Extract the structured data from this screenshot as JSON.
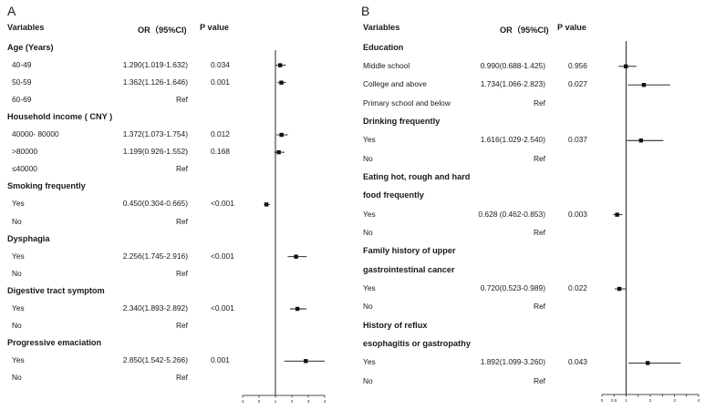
{
  "chart_data": [
    {
      "type": "forest",
      "panel": "A",
      "columns": [
        "Variables",
        "OR（95%CI)",
        "P value"
      ],
      "rows": [
        {
          "label": "Age (Years)",
          "header": true
        },
        {
          "label": "40-49",
          "or": 1.29,
          "lo": 1.019,
          "hi": 1.632,
          "ci": "1.290(1.019-1.632)",
          "p": "0.034"
        },
        {
          "label": "50-59",
          "or": 1.362,
          "lo": 1.126,
          "hi": 1.646,
          "ci": "1.362(1.126-1.646)",
          "p": "0.001"
        },
        {
          "label": "60-69",
          "ci": "Ref",
          "p": ""
        },
        {
          "label": "Household income ( CNY )",
          "header": true
        },
        {
          "label": "40000- 80000",
          "or": 1.372,
          "lo": 1.073,
          "hi": 1.754,
          "ci": "1.372(1.073-1.754)",
          "p": "0.012"
        },
        {
          "label": ">80000",
          "or": 1.199,
          "lo": 0.926,
          "hi": 1.552,
          "ci": "1.199(0.926-1.552)",
          "p": "0.168"
        },
        {
          "label": "≤40000",
          "ci": "Ref",
          "p": ""
        },
        {
          "label": "Smoking frequently",
          "header": true
        },
        {
          "label": "Yes",
          "or": 0.45,
          "lo": 0.304,
          "hi": 0.665,
          "ci": "0.450(0.304-0.665)",
          "p": "<0.001"
        },
        {
          "label": "No",
          "ci": "Ref",
          "p": ""
        },
        {
          "label": "Dysphagia",
          "header": true
        },
        {
          "label": "Yes",
          "or": 2.256,
          "lo": 1.745,
          "hi": 2.916,
          "ci": "2.256(1.745-2.916)",
          "p": "<0.001"
        },
        {
          "label": "No",
          "ci": "Ref",
          "p": ""
        },
        {
          "label": "Digestive tract symptom",
          "header": true
        },
        {
          "label": "Yes",
          "or": 2.34,
          "lo": 1.893,
          "hi": 2.892,
          "ci": "2.340(1.893-2.892)",
          "p": "<0.001"
        },
        {
          "label": "No",
          "ci": "Ref",
          "p": ""
        },
        {
          "label": "Progressive emaciation",
          "header": true
        },
        {
          "label": "Yes",
          "or": 2.85,
          "lo": 1.542,
          "hi": 5.266,
          "ci": "2.850(1.542-5.266)",
          "p": "0.001"
        },
        {
          "label": "No",
          "ci": "Ref",
          "p": ""
        }
      ],
      "xlim": [
        -1,
        4
      ],
      "xticks": [
        -1,
        0,
        1,
        2,
        3,
        4
      ],
      "xtick_labels": [
        "-1",
        "0",
        "1",
        "2",
        "3",
        "4"
      ],
      "reference_line": 1
    },
    {
      "type": "forest",
      "panel": "B",
      "columns": [
        "Variables",
        "OR（95%CI)",
        "P value"
      ],
      "rows": [
        {
          "label": "Education",
          "header": true
        },
        {
          "label": "Middle school",
          "or": 0.99,
          "lo": 0.688,
          "hi": 1.425,
          "ci": "0.990(0.688-1.425)",
          "p": "0.956"
        },
        {
          "label": "College and above",
          "or": 1.734,
          "lo": 1.066,
          "hi": 2.823,
          "ci": "1.734(1.066-2.823)",
          "p": "0.027"
        },
        {
          "label": "Primary school and below",
          "ci": "Ref",
          "p": ""
        },
        {
          "label": "Drinking frequently",
          "header": true
        },
        {
          "label": "Yes",
          "or": 1.616,
          "lo": 1.029,
          "hi": 2.54,
          "ci": "1.616(1.029-2.540)",
          "p": "0.037"
        },
        {
          "label": "No",
          "ci": "Ref",
          "p": ""
        },
        {
          "label": "Eating hot, rough and hard",
          "header": true
        },
        {
          "label": "food frequently",
          "header": true
        },
        {
          "label": "Yes",
          "or": 0.628,
          "lo": 0.462,
          "hi": 0.853,
          "ci": "0.628 (0.462-0.853)",
          "p": "0.003"
        },
        {
          "label": "No",
          "ci": "Ref",
          "p": ""
        },
        {
          "label": "Family history of upper",
          "header": true
        },
        {
          "label": "gastrointestinal cancer",
          "header": true
        },
        {
          "label": "Yes",
          "or": 0.72,
          "lo": 0.523,
          "hi": 0.989,
          "ci": "0.720(0.523-0.989)",
          "p": "0.022"
        },
        {
          "label": "No",
          "ci": "Ref",
          "p": ""
        },
        {
          "label": "History of reflux",
          "header": true
        },
        {
          "label": "esophagitis or gastropathy",
          "header": true
        },
        {
          "label": "Yes",
          "or": 1.892,
          "lo": 1.099,
          "hi": 3.26,
          "ci": "1.892(1.099-3.260)",
          "p": "0.043"
        },
        {
          "label": "No",
          "ci": "Ref",
          "p": ""
        }
      ],
      "xlim": [
        0,
        4
      ],
      "xticks": [
        0,
        0.5,
        1,
        1.5,
        2,
        2.5,
        3,
        3.5,
        4
      ],
      "xtick_labels": [
        "0",
        "0.5",
        "1",
        "",
        "2",
        "",
        "3",
        "",
        "4"
      ],
      "reference_line": 1
    }
  ]
}
